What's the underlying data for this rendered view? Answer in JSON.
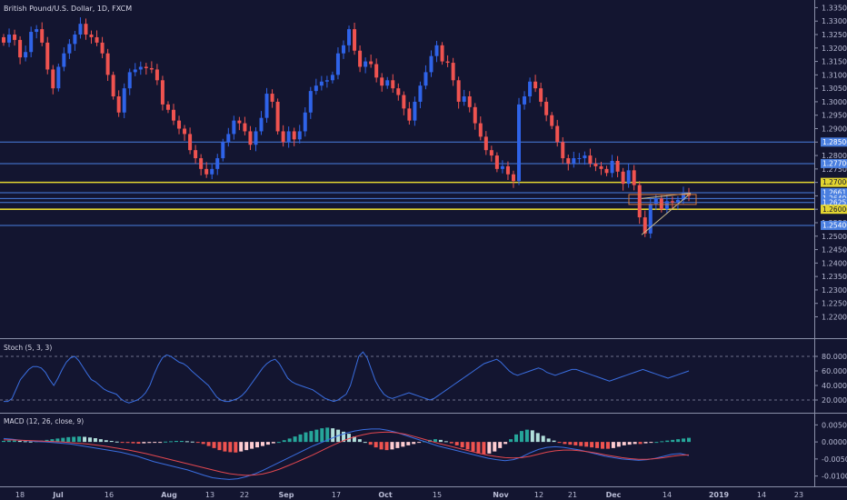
{
  "chart_data": [
    {
      "type": "candlestick",
      "title": "British Pound/U.S. Dollar, 1D, FXCM",
      "ylim": [
        1.2134,
        1.3365
      ],
      "y_ticks": [
        "1.33500",
        "1.33000",
        "1.32500",
        "1.32000",
        "1.31500",
        "1.31000",
        "1.30500",
        "1.30000",
        "1.29500",
        "1.29000",
        "1.28500",
        "1.28000",
        "1.27500",
        "1.27000",
        "1.26500",
        "1.26000",
        "1.25500",
        "1.25000",
        "1.24500",
        "1.24000",
        "1.23500",
        "1.23000",
        "1.22500",
        "1.22000"
      ],
      "x_ticks": [
        "18",
        "Jul",
        "16",
        "Aug",
        "13",
        "22",
        "Sep",
        "17",
        "Oct",
        "15",
        "Nov",
        "12",
        "21",
        "Dec",
        "14",
        "2019",
        "14",
        "23"
      ],
      "price_lines": [
        {
          "value": 1.285,
          "label": "1.28500",
          "color": "#4a7fe0"
        },
        {
          "value": 1.277,
          "label": "1.27700",
          "color": "#4a7fe0"
        },
        {
          "value": 1.27,
          "label": "1.27000",
          "color": "#e3d531"
        },
        {
          "value": 1.26617,
          "label": "1.26617",
          "color": "#4a7fe0"
        },
        {
          "value": 1.264,
          "label": "1.26400",
          "color": "#4a7fe0"
        },
        {
          "value": 1.26252,
          "label": "1.26252",
          "color": "#4a7fe0"
        },
        {
          "value": 1.26,
          "label": "1.26000",
          "color": "#e3d531"
        },
        {
          "value": 1.254,
          "label": "1.25400",
          "color": "#4a7fe0"
        }
      ],
      "series": [
        {
          "name": "close",
          "values": [
            1.322,
            1.325,
            1.323,
            1.3165,
            1.3185,
            1.326,
            1.327,
            1.322,
            1.312,
            1.305,
            1.313,
            1.318,
            1.3215,
            1.325,
            1.329,
            1.325,
            1.324,
            1.322,
            1.318,
            1.31,
            1.302,
            1.296,
            1.305,
            1.311,
            1.312,
            1.313,
            1.3125,
            1.312,
            1.308,
            1.299,
            1.297,
            1.293,
            1.29,
            1.288,
            1.282,
            1.279,
            1.275,
            1.273,
            1.275,
            1.279,
            1.285,
            1.288,
            1.293,
            1.292,
            1.289,
            1.284,
            1.289,
            1.294,
            1.303,
            1.3,
            1.289,
            1.285,
            1.289,
            1.286,
            1.289,
            1.296,
            1.304,
            1.306,
            1.3075,
            1.308,
            1.31,
            1.318,
            1.321,
            1.327,
            1.319,
            1.313,
            1.315,
            1.314,
            1.309,
            1.306,
            1.308,
            1.305,
            1.3025,
            1.2975,
            1.293,
            1.3,
            1.306,
            1.311,
            1.317,
            1.321,
            1.315,
            1.3145,
            1.308,
            1.3,
            1.302,
            1.298,
            1.292,
            1.287,
            1.282,
            1.28,
            1.275,
            1.276,
            1.273,
            1.2705,
            1.299,
            1.302,
            1.3075,
            1.305,
            1.3,
            1.295,
            1.291,
            1.285,
            1.279,
            1.277,
            1.279,
            1.279,
            1.28,
            1.277,
            1.276,
            1.275,
            1.2735,
            1.278,
            1.274,
            1.2695,
            1.2745,
            1.269,
            1.257,
            1.251,
            1.262,
            1.264,
            1.26,
            1.263,
            1.2625,
            1.2635,
            1.266,
            1.265
          ]
        }
      ]
    },
    {
      "type": "line",
      "title": "Stoch (5, 3, 3)",
      "ylim": [
        5,
        100
      ],
      "y_ticks": [
        "80.0000",
        "60.0000",
        "40.0000",
        "20.0000"
      ],
      "levels": [
        80,
        20
      ],
      "series": [
        {
          "name": "%K",
          "color": "#3a6ee0",
          "values": [
            18,
            18,
            22,
            35,
            48,
            55,
            62,
            66,
            66,
            64,
            58,
            48,
            40,
            50,
            62,
            72,
            78,
            80,
            74,
            65,
            56,
            48,
            45,
            40,
            35,
            32,
            30,
            28,
            22,
            18,
            16,
            18,
            20,
            24,
            30,
            40,
            55,
            68,
            78,
            82,
            80,
            76,
            72,
            70,
            66,
            60,
            55,
            50,
            45,
            40,
            32,
            24,
            20,
            18,
            18,
            20,
            22,
            26,
            32,
            40,
            48,
            56,
            64,
            70,
            74,
            76,
            70,
            60,
            50,
            45,
            42,
            40,
            38,
            36,
            34,
            30,
            26,
            22,
            20,
            18,
            20,
            24,
            28,
            40,
            60,
            80,
            86,
            78,
            62,
            46,
            36,
            28,
            24,
            22,
            24,
            26,
            28,
            30,
            28,
            26,
            24,
            22,
            20,
            22,
            26,
            30,
            34,
            38,
            42,
            46,
            50,
            54,
            58,
            62,
            66,
            70,
            72,
            74,
            76,
            72,
            66,
            60,
            56,
            54,
            56,
            58,
            60,
            62,
            64,
            62,
            58,
            56,
            54,
            56,
            58,
            60,
            62,
            62,
            60,
            58,
            56,
            54,
            52,
            50,
            48,
            46,
            48,
            50,
            52,
            54,
            56,
            58,
            60,
            62,
            60,
            58,
            56,
            54,
            52,
            50,
            52,
            54,
            56,
            58,
            60
          ]
        }
      ]
    },
    {
      "type": "bar",
      "title": "MACD (12, 26, close, 9)",
      "ylim": [
        -0.0125,
        0.0075
      ],
      "y_ticks": [
        "0.0050",
        "0.0000",
        "-0.0050",
        "-0.0100"
      ],
      "series": [
        {
          "name": "histogram",
          "values": [
            0.0003,
            0.0004,
            0.0004,
            0.0003,
            0.0002,
            0.0001,
            0.0002,
            0.0004,
            0.0006,
            0.0008,
            0.001,
            0.0012,
            0.0014,
            0.0015,
            0.0016,
            0.0015,
            0.0013,
            0.0011,
            0.0008,
            0.0005,
            0.0003,
            0.0001,
            -0.0001,
            -0.0003,
            -0.0004,
            -0.0005,
            -0.0004,
            -0.0003,
            -0.0002,
            -0.0001,
            0.0001,
            0.0002,
            0.0003,
            0.0003,
            0.0002,
            0.0001,
            -0.0002,
            -0.0006,
            -0.0012,
            -0.0018,
            -0.0024,
            -0.0028,
            -0.003,
            -0.0031,
            -0.0028,
            -0.0024,
            -0.002,
            -0.0016,
            -0.0012,
            -0.0008,
            -0.0004,
            0.0,
            0.0005,
            0.001,
            0.0016,
            0.0022,
            0.0028,
            0.0032,
            0.0036,
            0.004,
            0.0042,
            0.004,
            0.0036,
            0.003,
            0.0024,
            0.0016,
            0.0008,
            0.0,
            -0.0008,
            -0.0016,
            -0.0022,
            -0.0024,
            -0.0022,
            -0.0018,
            -0.0014,
            -0.001,
            -0.0006,
            -0.0002,
            0.0002,
            0.0006,
            0.0008,
            0.0006,
            0.0002,
            -0.0004,
            -0.001,
            -0.0016,
            -0.0022,
            -0.0028,
            -0.0034,
            -0.0036,
            -0.0034,
            -0.0028,
            -0.0018,
            -0.0006,
            0.0008,
            0.0022,
            0.0032,
            0.0036,
            0.0034,
            0.0026,
            0.0018,
            0.001,
            0.0004,
            -0.0002,
            -0.0006,
            -0.0008,
            -0.001,
            -0.0012,
            -0.0014,
            -0.0016,
            -0.0018,
            -0.002,
            -0.002,
            -0.0018,
            -0.0014,
            -0.001,
            -0.0008,
            -0.0006,
            -0.0006,
            -0.0004,
            -0.0002,
            0.0,
            0.0002,
            0.0004,
            0.0006,
            0.0008,
            0.001,
            0.0012
          ]
        },
        {
          "name": "MACD",
          "color": "#3a6ee0",
          "values": [
            0.001,
            0.0008,
            0.0005,
            0.0003,
            0.0001,
            0.0,
            -0.0002,
            -0.0004,
            -0.0006,
            -0.001,
            -0.0014,
            -0.0018,
            -0.0022,
            -0.0026,
            -0.003,
            -0.0036,
            -0.0042,
            -0.005,
            -0.0058,
            -0.0064,
            -0.007,
            -0.0076,
            -0.0082,
            -0.009,
            -0.0098,
            -0.0105,
            -0.0108,
            -0.011,
            -0.0108,
            -0.0102,
            -0.0094,
            -0.0084,
            -0.0072,
            -0.006,
            -0.0048,
            -0.0036,
            -0.0024,
            -0.0012,
            -0.0002,
            0.0008,
            0.0018,
            0.0026,
            0.0032,
            0.0036,
            0.0038,
            0.0038,
            0.0034,
            0.0028,
            0.002,
            0.0012,
            0.0004,
            -0.0004,
            -0.0012,
            -0.0018,
            -0.0024,
            -0.003,
            -0.0036,
            -0.0042,
            -0.0048,
            -0.0052,
            -0.0055,
            -0.0052,
            -0.0044,
            -0.0032,
            -0.0022,
            -0.0016,
            -0.0014,
            -0.0016,
            -0.002,
            -0.0024,
            -0.003,
            -0.0036,
            -0.0042,
            -0.0046,
            -0.005,
            -0.0052,
            -0.0054,
            -0.0052,
            -0.0048,
            -0.0042,
            -0.0036,
            -0.0034,
            -0.004
          ]
        },
        {
          "name": "Signal",
          "color": "#e3474f",
          "values": [
            0.0006,
            0.0006,
            0.0005,
            0.0004,
            0.0003,
            0.0002,
            0.0001,
            0.0,
            -0.0002,
            -0.0004,
            -0.0006,
            -0.0009,
            -0.0012,
            -0.0016,
            -0.002,
            -0.0024,
            -0.0029,
            -0.0034,
            -0.004,
            -0.0046,
            -0.0052,
            -0.0058,
            -0.0064,
            -0.007,
            -0.0076,
            -0.0082,
            -0.0088,
            -0.0093,
            -0.0096,
            -0.0098,
            -0.0097,
            -0.0094,
            -0.0088,
            -0.008,
            -0.007,
            -0.006,
            -0.0049,
            -0.0038,
            -0.0026,
            -0.0014,
            -0.0003,
            0.0007,
            0.0015,
            0.0021,
            0.0026,
            0.0028,
            0.0029,
            0.0027,
            0.0023,
            0.0017,
            0.001,
            0.0003,
            -0.0004,
            -0.001,
            -0.0016,
            -0.0022,
            -0.0028,
            -0.0034,
            -0.0039,
            -0.0043,
            -0.0046,
            -0.0047,
            -0.0046,
            -0.0042,
            -0.0036,
            -0.003,
            -0.0026,
            -0.0024,
            -0.0024,
            -0.0026,
            -0.0029,
            -0.0033,
            -0.0038,
            -0.0042,
            -0.0046,
            -0.0049,
            -0.0051,
            -0.0051,
            -0.0049,
            -0.0046,
            -0.0042,
            -0.0039,
            -0.0038
          ]
        }
      ]
    }
  ]
}
